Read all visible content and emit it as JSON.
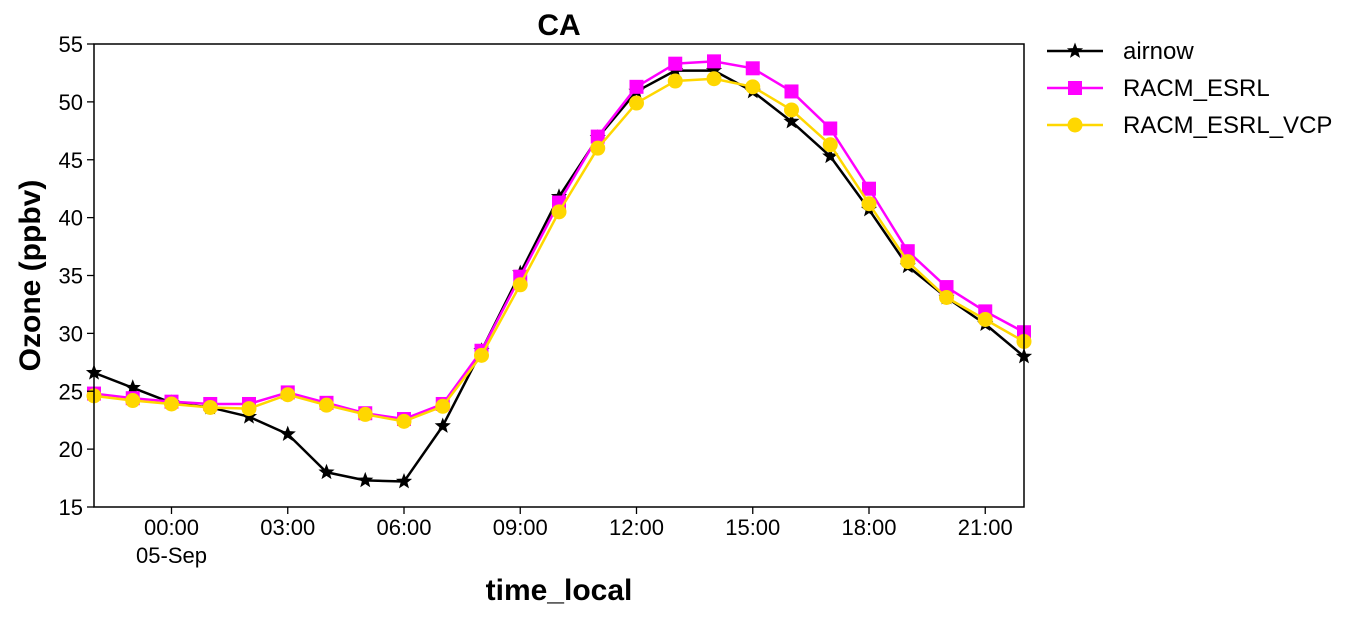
{
  "chart_data": {
    "type": "line",
    "title": "CA",
    "xlabel": "time_local",
    "ylabel": "Ozone (ppbv)",
    "ylim": [
      15,
      55
    ],
    "xlim": [
      "2020-09-04 22:00",
      "2020-09-05 22:00"
    ],
    "grid": false,
    "legend_position": "outside-top-right",
    "x_ticks": [
      {
        "value": "2020-09-05 00:00",
        "label": "00:00",
        "sublabel": "05-Sep"
      },
      {
        "value": "2020-09-05 03:00",
        "label": "03:00",
        "sublabel": ""
      },
      {
        "value": "2020-09-05 06:00",
        "label": "06:00",
        "sublabel": ""
      },
      {
        "value": "2020-09-05 09:00",
        "label": "09:00",
        "sublabel": ""
      },
      {
        "value": "2020-09-05 12:00",
        "label": "12:00",
        "sublabel": ""
      },
      {
        "value": "2020-09-05 15:00",
        "label": "15:00",
        "sublabel": ""
      },
      {
        "value": "2020-09-05 18:00",
        "label": "18:00",
        "sublabel": ""
      },
      {
        "value": "2020-09-05 21:00",
        "label": "21:00",
        "sublabel": ""
      }
    ],
    "y_ticks": [
      15,
      20,
      25,
      30,
      35,
      40,
      45,
      50,
      55
    ],
    "x": [
      "2020-09-04 22:00",
      "2020-09-04 23:00",
      "2020-09-05 00:00",
      "2020-09-05 01:00",
      "2020-09-05 02:00",
      "2020-09-05 03:00",
      "2020-09-05 04:00",
      "2020-09-05 05:00",
      "2020-09-05 06:00",
      "2020-09-05 07:00",
      "2020-09-05 08:00",
      "2020-09-05 09:00",
      "2020-09-05 10:00",
      "2020-09-05 11:00",
      "2020-09-05 12:00",
      "2020-09-05 13:00",
      "2020-09-05 14:00",
      "2020-09-05 15:00",
      "2020-09-05 16:00",
      "2020-09-05 17:00",
      "2020-09-05 18:00",
      "2020-09-05 19:00",
      "2020-09-05 20:00",
      "2020-09-05 21:00",
      "2020-09-05 22:00"
    ],
    "series": [
      {
        "name": "airnow",
        "color": "#000000",
        "marker": "star",
        "values": [
          26.6,
          25.3,
          24.0,
          23.6,
          22.8,
          21.3,
          18.0,
          17.3,
          17.2,
          22.0,
          28.5,
          35.2,
          41.8,
          46.9,
          50.9,
          52.7,
          52.7,
          50.9,
          48.3,
          45.3,
          40.7,
          35.8,
          33.1,
          30.8,
          28.0
        ]
      },
      {
        "name": "RACM_ESRL",
        "color": "#ff00ff",
        "marker": "square",
        "values": [
          24.8,
          24.4,
          24.1,
          23.9,
          23.9,
          24.9,
          24.0,
          23.1,
          22.6,
          23.9,
          28.5,
          34.9,
          41.3,
          47.0,
          51.3,
          53.3,
          53.5,
          52.9,
          50.9,
          47.7,
          42.5,
          37.1,
          34.0,
          31.9,
          30.1
        ]
      },
      {
        "name": "RACM_ESRL_VCP",
        "color": "#ffd700",
        "marker": "circle",
        "values": [
          24.6,
          24.2,
          23.9,
          23.6,
          23.5,
          24.7,
          23.8,
          23.0,
          22.4,
          23.7,
          28.1,
          34.2,
          40.5,
          46.0,
          49.9,
          51.8,
          52.0,
          51.3,
          49.3,
          46.3,
          41.2,
          36.2,
          33.1,
          31.2,
          29.3
        ]
      }
    ]
  }
}
